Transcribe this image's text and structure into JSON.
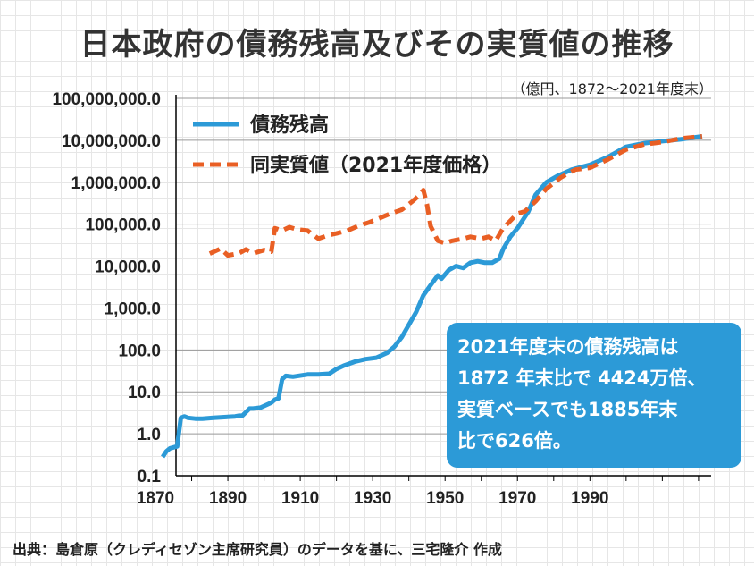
{
  "title": "日本政府の債務残高及びその実質値の推移",
  "subtitle": "（億円、1872～2021年度末）",
  "callout": [
    "2021年度末の債務残高は",
    "1872 年末比で 4424万倍、",
    "実質ベースでも1885年末",
    "比で626倍。"
  ],
  "source": "出典：島倉原（クレディセゾン主席研究員）のデータを基に、三宅隆介 作成",
  "colors": {
    "debt": "#2c9ad7",
    "real": "#e95f24",
    "callout_bg": "#2c9ad7"
  },
  "chart_data": {
    "type": "line",
    "title": "日本政府の債務残高及びその実質値の推移",
    "unit": "億円",
    "y_scale": "log",
    "ylim": [
      0.1,
      100000000
    ],
    "xlim": [
      1870,
      2022
    ],
    "y_ticks": [
      "100,000,000.0",
      "10,000,000.0",
      "1,000,000.0",
      "100,000.0",
      "10,000.0",
      "1,000.0",
      "100.0",
      "10.0",
      "1.0",
      "0.1"
    ],
    "x_ticks": [
      "1870",
      "1890",
      "1910",
      "1930",
      "1950",
      "1970",
      "1990"
    ],
    "legend_position": "top-left",
    "series": [
      {
        "name": "債務残高",
        "style": "solid",
        "x": [
          1872,
          1873,
          1874,
          1876,
          1877,
          1878,
          1879,
          1881,
          1883,
          1886,
          1889,
          1892,
          1893,
          1894,
          1896,
          1897,
          1899,
          1902,
          1903,
          1904,
          1905,
          1906,
          1908,
          1912,
          1915,
          1918,
          1920,
          1922,
          1925,
          1928,
          1931,
          1934,
          1936,
          1938,
          1940,
          1942,
          1944,
          1946,
          1948,
          1949,
          1951,
          1953,
          1955,
          1957,
          1959,
          1961,
          1963,
          1965,
          1966,
          1968,
          1970,
          1973,
          1975,
          1978,
          1981,
          1985,
          1990,
          1995,
          2000,
          2005,
          2010,
          2015,
          2021
        ],
        "values": [
          0.28,
          0.38,
          0.45,
          0.5,
          2.4,
          2.6,
          2.4,
          2.3,
          2.3,
          2.4,
          2.5,
          2.6,
          2.7,
          2.7,
          4,
          4,
          4.2,
          5.5,
          6.5,
          7,
          20,
          24,
          23,
          26,
          26,
          27,
          35,
          42,
          52,
          60,
          65,
          85,
          120,
          200,
          400,
          800,
          2000,
          3500,
          6000,
          5000,
          8000,
          10000,
          9000,
          12000,
          13000,
          12000,
          12000,
          15000,
          25000,
          50000,
          80000,
          200000,
          500000,
          1000000,
          1400000,
          2000000,
          2600000,
          4000000,
          7000000,
          8500000,
          9500000,
          10500000,
          12400000
        ]
      },
      {
        "name": "同実質値（2021年度価格）",
        "style": "dashed",
        "x": [
          1885,
          1888,
          1890,
          1893,
          1895,
          1897,
          1900,
          1902,
          1903,
          1905,
          1907,
          1909,
          1912,
          1915,
          1918,
          1920,
          1923,
          1926,
          1929,
          1932,
          1935,
          1938,
          1941,
          1943,
          1944,
          1945,
          1946,
          1948,
          1950,
          1952,
          1955,
          1957,
          1960,
          1962,
          1964,
          1966,
          1968,
          1970,
          1972,
          1975,
          1978,
          1982,
          1986,
          1990,
          1995,
          2000,
          2005,
          2010,
          2015,
          2021
        ],
        "values": [
          19800,
          26000,
          18000,
          20000,
          25000,
          20000,
          24000,
          22000,
          80000,
          70000,
          85000,
          75000,
          70000,
          45000,
          55000,
          60000,
          70000,
          90000,
          110000,
          140000,
          180000,
          220000,
          350000,
          500000,
          650000,
          300000,
          90000,
          40000,
          35000,
          40000,
          45000,
          50000,
          45000,
          50000,
          40000,
          80000,
          120000,
          180000,
          200000,
          350000,
          700000,
          1300000,
          2000000,
          2200000,
          3500000,
          6000000,
          8000000,
          9000000,
          11000000,
          12400000
        ]
      }
    ]
  }
}
